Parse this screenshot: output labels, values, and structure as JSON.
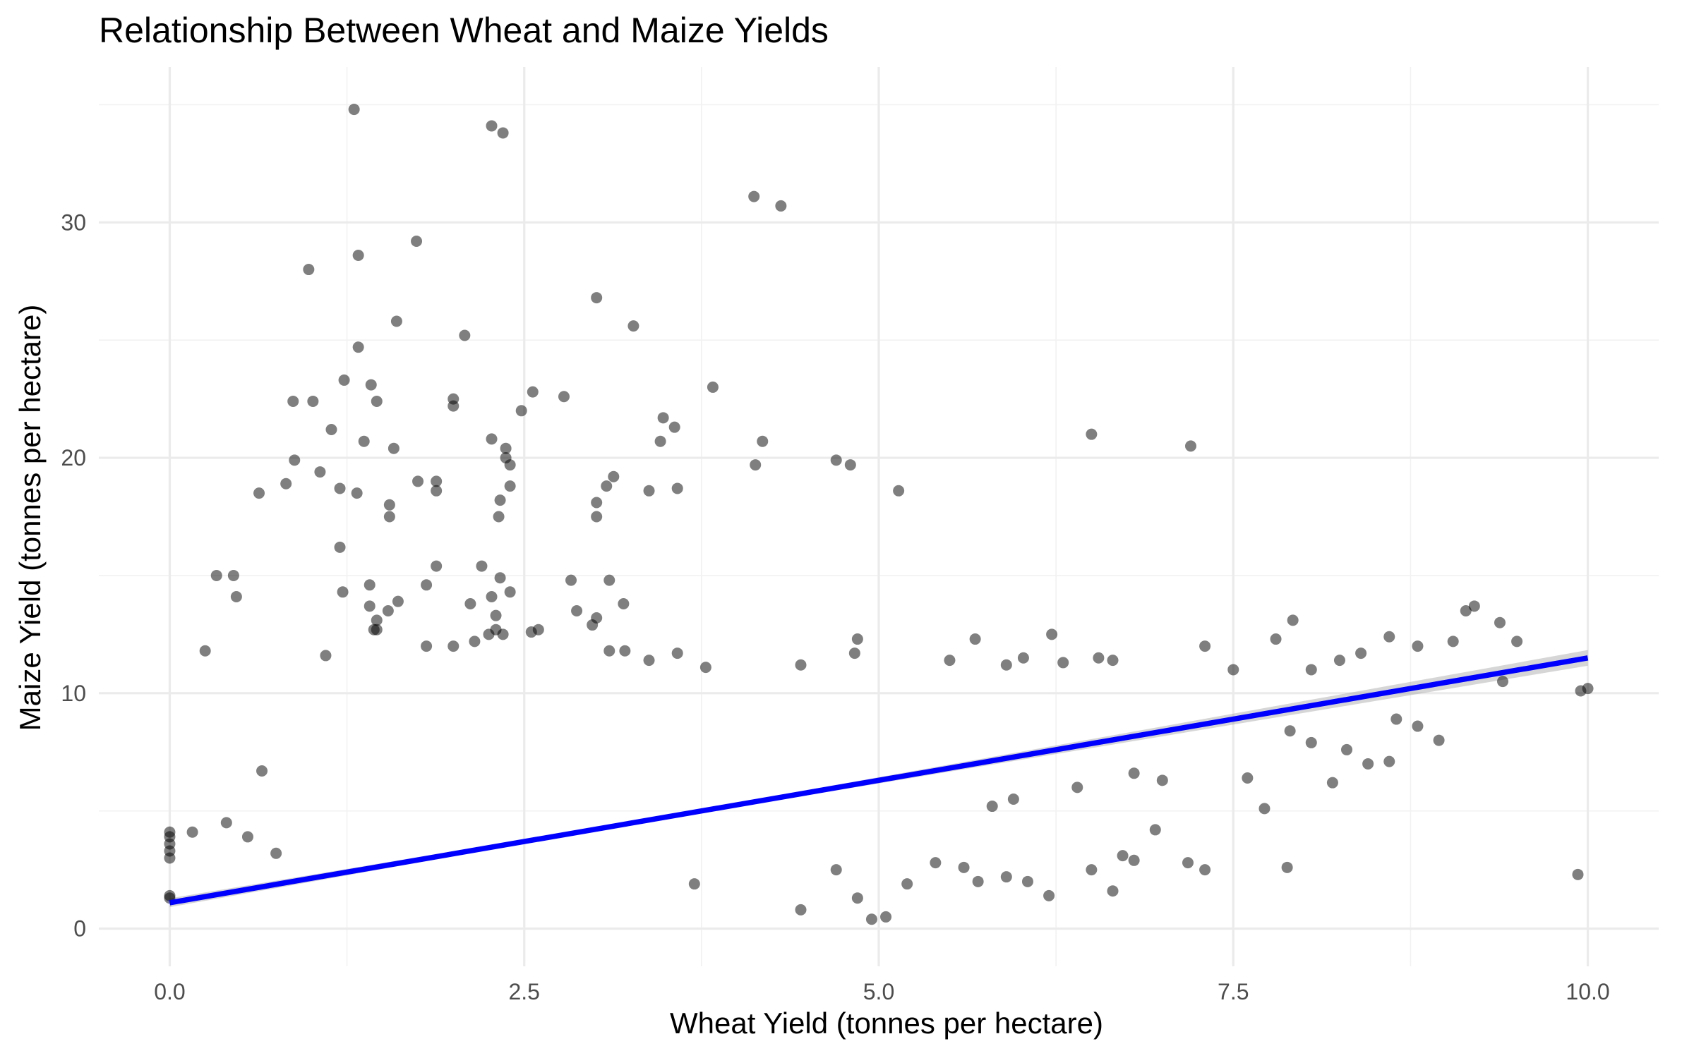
{
  "chart_data": {
    "type": "scatter",
    "title": "Relationship Between Wheat and Maize Yields",
    "xlabel": "Wheat Yield (tonnes per hectare)",
    "ylabel": "Maize Yield (tonnes per hectare)",
    "xlim": [
      -0.5,
      10.5
    ],
    "ylim": [
      -1.6,
      36.6
    ],
    "x_ticks": [
      0,
      2.5,
      5,
      7.5,
      10
    ],
    "x_tick_labels": [
      "0.0",
      "2.5",
      "5.0",
      "7.5",
      "10.0"
    ],
    "y_ticks": [
      0,
      10,
      20,
      30
    ],
    "y_tick_labels": [
      "0",
      "10",
      "20",
      "30"
    ],
    "grid": true,
    "legend": "none",
    "colors": {
      "points": "#000000",
      "point_opacity": 0.5,
      "trend_line": "#0000ff",
      "confidence_band": "#999999"
    },
    "trend_line": {
      "method": "linear",
      "x": [
        0,
        10
      ],
      "y": [
        1.1,
        11.5
      ]
    },
    "series": [
      {
        "points": [
          [
            1.3,
            34.8
          ],
          [
            2.27,
            34.1
          ],
          [
            2.35,
            33.8
          ],
          [
            4.12,
            31.1
          ],
          [
            4.31,
            30.7
          ],
          [
            1.74,
            29.2
          ],
          [
            1.33,
            28.6
          ],
          [
            0.98,
            28.0
          ],
          [
            3.01,
            26.8
          ],
          [
            3.27,
            25.6
          ],
          [
            1.6,
            25.8
          ],
          [
            2.08,
            25.2
          ],
          [
            1.33,
            24.7
          ],
          [
            3.83,
            23.0
          ],
          [
            1.23,
            23.3
          ],
          [
            1.42,
            23.1
          ],
          [
            2.56,
            22.8
          ],
          [
            0.87,
            22.4
          ],
          [
            1.01,
            22.4
          ],
          [
            1.46,
            22.4
          ],
          [
            2.78,
            22.6
          ],
          [
            2.0,
            22.5
          ],
          [
            2.0,
            22.2
          ],
          [
            2.48,
            22.0
          ],
          [
            3.48,
            21.7
          ],
          [
            3.56,
            21.3
          ],
          [
            1.14,
            21.2
          ],
          [
            6.5,
            21.0
          ],
          [
            2.27,
            20.8
          ],
          [
            3.46,
            20.7
          ],
          [
            1.37,
            20.7
          ],
          [
            4.18,
            20.7
          ],
          [
            7.2,
            20.5
          ],
          [
            1.58,
            20.4
          ],
          [
            2.37,
            20.4
          ],
          [
            2.37,
            20.0
          ],
          [
            2.4,
            19.7
          ],
          [
            4.13,
            19.7
          ],
          [
            4.7,
            19.9
          ],
          [
            4.8,
            19.7
          ],
          [
            0.88,
            19.9
          ],
          [
            1.06,
            19.4
          ],
          [
            3.13,
            19.2
          ],
          [
            3.08,
            18.8
          ],
          [
            1.75,
            19.0
          ],
          [
            1.88,
            19.0
          ],
          [
            2.4,
            18.8
          ],
          [
            3.38,
            18.6
          ],
          [
            3.58,
            18.7
          ],
          [
            5.14,
            18.6
          ],
          [
            0.63,
            18.5
          ],
          [
            0.82,
            18.9
          ],
          [
            1.2,
            18.7
          ],
          [
            1.32,
            18.5
          ],
          [
            1.88,
            18.6
          ],
          [
            3.01,
            18.1
          ],
          [
            1.55,
            18.0
          ],
          [
            2.33,
            18.2
          ],
          [
            2.32,
            17.5
          ],
          [
            1.55,
            17.5
          ],
          [
            3.01,
            17.5
          ],
          [
            1.2,
            16.2
          ],
          [
            1.88,
            15.4
          ],
          [
            1.81,
            14.6
          ],
          [
            2.2,
            15.4
          ],
          [
            2.33,
            14.9
          ],
          [
            2.4,
            14.3
          ],
          [
            2.83,
            14.8
          ],
          [
            3.1,
            14.8
          ],
          [
            0.33,
            15.0
          ],
          [
            0.45,
            15.0
          ],
          [
            0.47,
            14.1
          ],
          [
            1.22,
            14.3
          ],
          [
            1.41,
            14.6
          ],
          [
            1.41,
            13.7
          ],
          [
            1.61,
            13.9
          ],
          [
            1.54,
            13.5
          ],
          [
            2.12,
            13.8
          ],
          [
            2.27,
            14.1
          ],
          [
            2.3,
            13.3
          ],
          [
            2.87,
            13.5
          ],
          [
            3.01,
            13.2
          ],
          [
            3.2,
            13.8
          ],
          [
            1.46,
            13.1
          ],
          [
            1.46,
            12.7
          ],
          [
            1.44,
            12.7
          ],
          [
            2.25,
            12.5
          ],
          [
            2.3,
            12.7
          ],
          [
            2.35,
            12.5
          ],
          [
            2.55,
            12.6
          ],
          [
            2.6,
            12.7
          ],
          [
            2.98,
            12.9
          ],
          [
            0.25,
            11.8
          ],
          [
            1.1,
            11.6
          ],
          [
            1.81,
            12.0
          ],
          [
            2.0,
            12.0
          ],
          [
            2.15,
            12.2
          ],
          [
            3.1,
            11.8
          ],
          [
            3.21,
            11.8
          ],
          [
            3.38,
            11.4
          ],
          [
            3.58,
            11.7
          ],
          [
            3.78,
            11.1
          ],
          [
            4.45,
            11.2
          ],
          [
            4.85,
            12.3
          ],
          [
            4.83,
            11.7
          ],
          [
            5.5,
            11.4
          ],
          [
            5.68,
            12.3
          ],
          [
            5.9,
            11.2
          ],
          [
            6.02,
            11.5
          ],
          [
            6.22,
            12.5
          ],
          [
            6.3,
            11.3
          ],
          [
            6.55,
            11.5
          ],
          [
            6.65,
            11.4
          ],
          [
            7.3,
            12.0
          ],
          [
            7.5,
            11.0
          ],
          [
            7.8,
            12.3
          ],
          [
            7.92,
            13.1
          ],
          [
            8.05,
            11.0
          ],
          [
            8.25,
            11.4
          ],
          [
            8.4,
            11.7
          ],
          [
            8.6,
            12.4
          ],
          [
            8.8,
            12.0
          ],
          [
            9.05,
            12.2
          ],
          [
            9.14,
            13.5
          ],
          [
            9.2,
            13.7
          ],
          [
            9.38,
            13.0
          ],
          [
            9.5,
            12.2
          ],
          [
            9.4,
            10.5
          ],
          [
            9.95,
            10.1
          ],
          [
            10.0,
            10.2
          ],
          [
            9.93,
            2.3
          ],
          [
            7.88,
            2.6
          ],
          [
            7.72,
            5.1
          ],
          [
            7.3,
            2.5
          ],
          [
            7.18,
            2.8
          ],
          [
            6.95,
            4.2
          ],
          [
            6.8,
            2.9
          ],
          [
            6.72,
            3.1
          ],
          [
            6.65,
            1.6
          ],
          [
            6.5,
            2.5
          ],
          [
            6.2,
            1.4
          ],
          [
            6.05,
            2.0
          ],
          [
            5.9,
            2.2
          ],
          [
            5.7,
            2.0
          ],
          [
            5.6,
            2.6
          ],
          [
            5.4,
            2.8
          ],
          [
            5.2,
            1.9
          ],
          [
            5.05,
            0.5
          ],
          [
            4.95,
            0.4
          ],
          [
            4.85,
            1.3
          ],
          [
            4.7,
            2.5
          ],
          [
            4.45,
            0.8
          ],
          [
            3.7,
            1.9
          ],
          [
            7.0,
            6.3
          ],
          [
            6.8,
            6.6
          ],
          [
            6.4,
            6.0
          ],
          [
            5.95,
            5.5
          ],
          [
            5.8,
            5.2
          ],
          [
            7.6,
            6.4
          ],
          [
            8.2,
            6.2
          ],
          [
            8.45,
            7.0
          ],
          [
            8.6,
            7.1
          ],
          [
            8.8,
            8.6
          ],
          [
            8.95,
            8.0
          ],
          [
            8.65,
            8.9
          ],
          [
            8.3,
            7.6
          ],
          [
            8.05,
            7.9
          ],
          [
            7.9,
            8.4
          ],
          [
            0.0,
            4.1
          ],
          [
            0.0,
            3.9
          ],
          [
            0.0,
            3.6
          ],
          [
            0.0,
            3.3
          ],
          [
            0.0,
            3.0
          ],
          [
            0.0,
            1.4
          ],
          [
            0.0,
            1.3
          ],
          [
            0.16,
            4.1
          ],
          [
            0.65,
            6.7
          ],
          [
            0.4,
            4.5
          ],
          [
            0.55,
            3.9
          ],
          [
            0.75,
            3.2
          ]
        ]
      }
    ]
  }
}
